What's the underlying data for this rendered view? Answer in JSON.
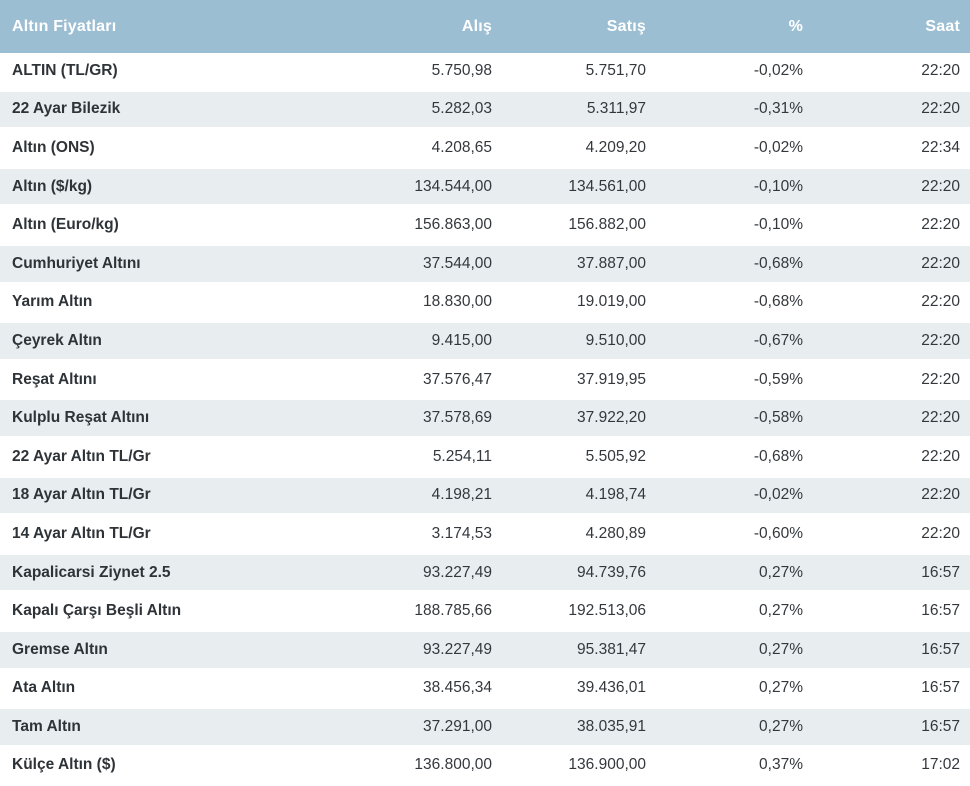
{
  "table": {
    "title": "Altın Fiyatları",
    "columns": [
      "Altın Fiyatları",
      "Alış",
      "Satış",
      "%",
      "Saat"
    ],
    "rows": [
      {
        "name": "ALTIN (TL/GR)",
        "buy": "5.750,98",
        "sell": "5.751,70",
        "change": "-0,02%",
        "time": "22:20"
      },
      {
        "name": "22 Ayar Bilezik",
        "buy": "5.282,03",
        "sell": "5.311,97",
        "change": "-0,31%",
        "time": "22:20"
      },
      {
        "name": "Altın (ONS)",
        "buy": "4.208,65",
        "sell": "4.209,20",
        "change": "-0,02%",
        "time": "22:34"
      },
      {
        "name": "Altın ($/kg)",
        "buy": "134.544,00",
        "sell": "134.561,00",
        "change": "-0,10%",
        "time": "22:20"
      },
      {
        "name": "Altın (Euro/kg)",
        "buy": "156.863,00",
        "sell": "156.882,00",
        "change": "-0,10%",
        "time": "22:20"
      },
      {
        "name": "Cumhuriyet Altını",
        "buy": "37.544,00",
        "sell": "37.887,00",
        "change": "-0,68%",
        "time": "22:20"
      },
      {
        "name": "Yarım Altın",
        "buy": "18.830,00",
        "sell": "19.019,00",
        "change": "-0,68%",
        "time": "22:20"
      },
      {
        "name": "Çeyrek Altın",
        "buy": "9.415,00",
        "sell": "9.510,00",
        "change": "-0,67%",
        "time": "22:20"
      },
      {
        "name": "Reşat Altını",
        "buy": "37.576,47",
        "sell": "37.919,95",
        "change": "-0,59%",
        "time": "22:20"
      },
      {
        "name": "Kulplu Reşat Altını",
        "buy": "37.578,69",
        "sell": "37.922,20",
        "change": "-0,58%",
        "time": "22:20"
      },
      {
        "name": "22 Ayar Altın TL/Gr",
        "buy": "5.254,11",
        "sell": "5.505,92",
        "change": "-0,68%",
        "time": "22:20"
      },
      {
        "name": "18 Ayar Altın TL/Gr",
        "buy": "4.198,21",
        "sell": "4.198,74",
        "change": "-0,02%",
        "time": "22:20"
      },
      {
        "name": "14 Ayar Altın TL/Gr",
        "buy": "3.174,53",
        "sell": "4.280,89",
        "change": "-0,60%",
        "time": "22:20"
      },
      {
        "name": "Kapalicarsi Ziynet 2.5",
        "buy": "93.227,49",
        "sell": "94.739,76",
        "change": "0,27%",
        "time": "16:57"
      },
      {
        "name": "Kapalı Çarşı Beşli Altın",
        "buy": "188.785,66",
        "sell": "192.513,06",
        "change": "0,27%",
        "time": "16:57"
      },
      {
        "name": "Gremse Altın",
        "buy": "93.227,49",
        "sell": "95.381,47",
        "change": "0,27%",
        "time": "16:57"
      },
      {
        "name": "Ata Altın",
        "buy": "38.456,34",
        "sell": "39.436,01",
        "change": "0,27%",
        "time": "16:57"
      },
      {
        "name": "Tam Altın",
        "buy": "37.291,00",
        "sell": "38.035,91",
        "change": "0,27%",
        "time": "16:57"
      },
      {
        "name": "Külçe Altın ($)",
        "buy": "136.800,00",
        "sell": "136.900,00",
        "change": "0,37%",
        "time": "17:02"
      }
    ]
  },
  "colors": {
    "header_bg": "#9cbed3",
    "header_text": "#ffffff",
    "row_bg": "#ffffff",
    "row_alt_bg": "#e8edf0",
    "text": "#33383d"
  }
}
